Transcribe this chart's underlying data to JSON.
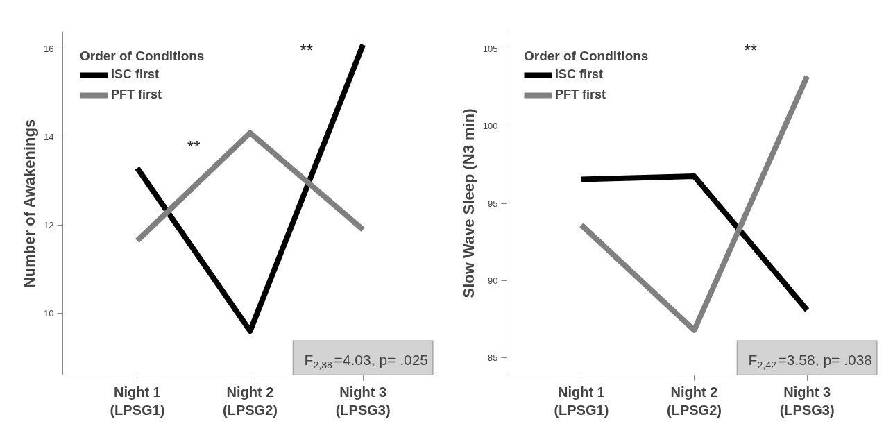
{
  "chart_data": [
    {
      "type": "line",
      "ylabel": "Number of Awakenings",
      "legend_title": "Order of Conditions",
      "categories": [
        "Night 1\n(LPSG1)",
        "Night 2\n(LPSG2)",
        "Night 3\n(LPSG3)"
      ],
      "series": [
        {
          "name": "ISC first",
          "color": "#000000",
          "values": [
            13.3,
            9.6,
            16.1
          ]
        },
        {
          "name": "PFT first",
          "color": "#808080",
          "values": [
            11.65,
            14.1,
            11.9
          ]
        }
      ],
      "ylim": [
        8.6,
        16.4
      ],
      "yticks": [
        10,
        12,
        14,
        16
      ],
      "grid": false,
      "legend": "top left",
      "marker": "none",
      "line_style": "solid",
      "annotations": [
        "**",
        "**",
        "F$_{2,38}$=4.03, p= .025"
      ]
    },
    {
      "type": "line",
      "ylabel": "Slow Wave Sleep (N3 min)",
      "legend_title": "Order of Conditions",
      "categories": [
        "Night 1\n(LPSG1)",
        "Night 2\n(LPSG2)",
        "Night 3\n(LPSG3)"
      ],
      "series": [
        {
          "name": "ISC first",
          "color": "#000000",
          "values": [
            96.55,
            96.75,
            88.1
          ]
        },
        {
          "name": "PFT first",
          "color": "#808080",
          "values": [
            93.6,
            86.8,
            103.2
          ]
        }
      ],
      "ylim": [
        83.9,
        106.1
      ],
      "yticks": [
        85,
        90,
        95,
        100,
        105
      ],
      "grid": false,
      "legend": "top left",
      "marker": "none",
      "line_style": "solid",
      "annotations": [
        "**",
        "F$_{2,42}$=3.58, p= .038"
      ]
    }
  ]
}
